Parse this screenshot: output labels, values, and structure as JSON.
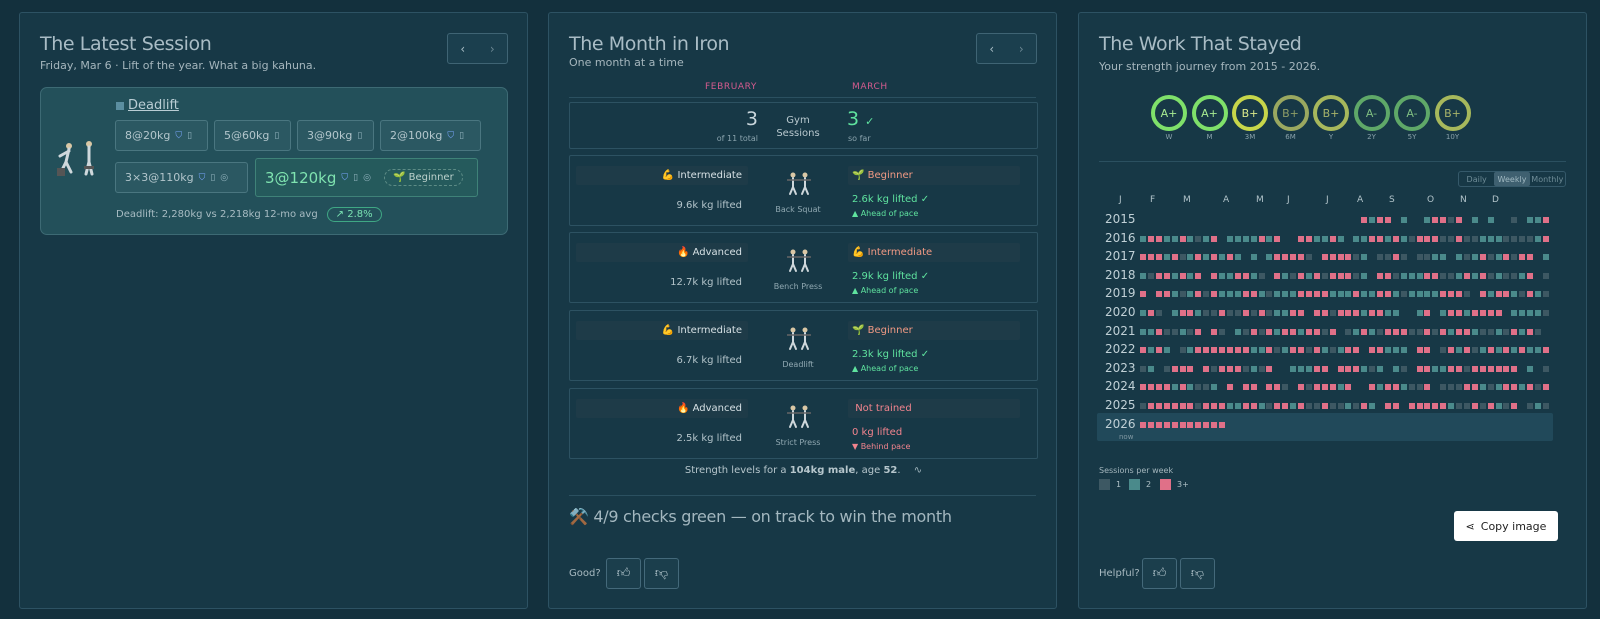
{
  "latest": {
    "title": "The Latest Session",
    "subtitle": "Friday, Mar 6 · Lift of the year. What a big kahuna.",
    "exercise": "Deadlift",
    "sets": [
      "8@20kg",
      "5@60kg",
      "3@90kg",
      "2@100kg",
      "3×3@110kg"
    ],
    "top_set": "3@120kg",
    "level_tag": "Beginner",
    "comparison": "Deadlift: 2,280kg vs 2,218kg 12-mo avg",
    "change": "2.8%"
  },
  "month": {
    "title": "The Month in Iron",
    "subtitle": "One month at a time",
    "prev_month": "FEBRUARY",
    "cur_month": "MARCH",
    "gym_label_1": "Gym",
    "gym_label_2": "Sessions",
    "prev_sessions": "3",
    "prev_sessions_note": "of 11 total",
    "cur_sessions": "3",
    "cur_sessions_check": "✓",
    "cur_sessions_note": "so far",
    "lifts": [
      {
        "name": "Back Squat",
        "prev_level": "Intermediate",
        "prev_emoji": "💪",
        "prev_kg": "9.6k kg lifted",
        "cur_level": "Beginner",
        "cur_emoji": "🌱",
        "cur_kg": "2.6k kg lifted ✓",
        "pace": "▲ Ahead of pace"
      },
      {
        "name": "Bench Press",
        "prev_level": "Advanced",
        "prev_emoji": "🔥",
        "prev_kg": "12.7k kg lifted",
        "cur_level": "Intermediate",
        "cur_emoji": "💪",
        "cur_kg": "2.9k kg lifted ✓",
        "pace": "▲ Ahead of pace"
      },
      {
        "name": "Deadlift",
        "prev_level": "Intermediate",
        "prev_emoji": "💪",
        "prev_kg": "6.7k kg lifted",
        "cur_level": "Beginner",
        "cur_emoji": "🌱",
        "cur_kg": "2.3k kg lifted ✓",
        "pace": "▲ Ahead of pace"
      },
      {
        "name": "Strict Press",
        "prev_level": "Advanced",
        "prev_emoji": "🔥",
        "prev_kg": "2.5k kg lifted",
        "cur_level": "Not trained",
        "cur_emoji": "",
        "cur_kg": "0 kg lifted",
        "pace": "▼ Behind pace"
      }
    ],
    "strength_prefix": "Strength levels for a ",
    "strength_bold": "104kg male",
    "strength_mid": ", age ",
    "strength_age": "52",
    "strength_suffix": ".",
    "checks": "⚒️ 4/9 checks green — on track to win the month",
    "feedback_label": "Good?"
  },
  "work": {
    "title": "The Work That Stayed",
    "subtitle": "Your strength journey from 2015 - 2026.",
    "grades": [
      {
        "grade": "A+",
        "label": "W"
      },
      {
        "grade": "A+",
        "label": "M"
      },
      {
        "grade": "B+",
        "label": "3M"
      },
      {
        "grade": "B+",
        "label": "6M"
      },
      {
        "grade": "B+",
        "label": "Y"
      },
      {
        "grade": "A-",
        "label": "2Y"
      },
      {
        "grade": "A-",
        "label": "5Y"
      },
      {
        "grade": "B+",
        "label": "10Y"
      }
    ],
    "views": [
      "Daily",
      "Weekly",
      "Monthly"
    ],
    "active_view": "Weekly",
    "months": [
      "J",
      "F",
      "M",
      "A",
      "M",
      "J",
      "J",
      "A",
      "S",
      "O",
      "N",
      "D"
    ],
    "years": [
      "2015",
      "2016",
      "2017",
      "2018",
      "2019",
      "2020",
      "2021",
      "2022",
      "2023",
      "2024",
      "2025",
      "2026"
    ],
    "now_label": "now",
    "legend_title": "Sessions per week",
    "legend": [
      "1",
      "2",
      "3+"
    ],
    "colors": {
      "one": "#3d5863",
      "two": "#4a8a8b",
      "three": "#e07088"
    },
    "copy_label": "Copy image",
    "feedback_label": "Helpful?"
  }
}
